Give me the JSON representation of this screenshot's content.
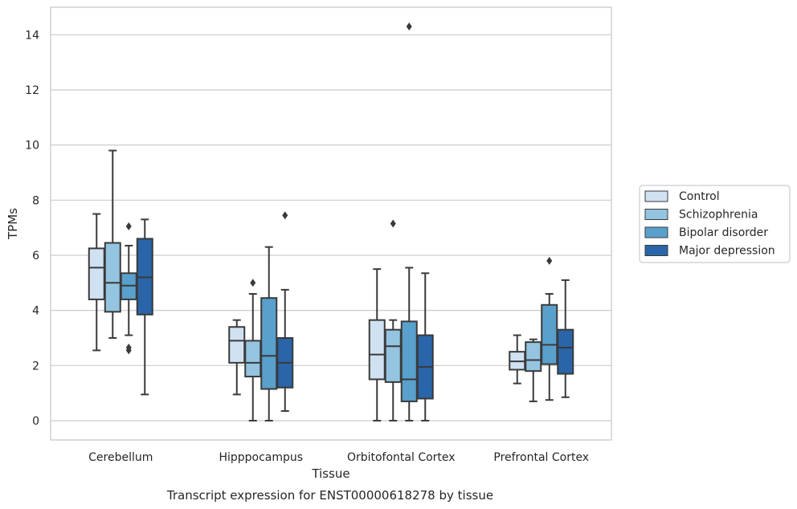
{
  "caption": "Transcript expression for ENST00000618278 by tissue",
  "chart_data": {
    "type": "boxplot",
    "xlabel": "Tissue",
    "ylabel": "TPMs",
    "ylim": [
      -0.7,
      15.0
    ],
    "yticks": [
      0,
      2,
      4,
      6,
      8,
      10,
      12,
      14
    ],
    "grid": "horizontal",
    "legend_position": "right",
    "categories": [
      "Cerebellum",
      "Hipppocampus",
      "Orbitofontal Cortex",
      "Prefrontal Cortex"
    ],
    "series": [
      {
        "name": "Control",
        "color": "#d0e1f2",
        "boxes": [
          {
            "whislo": 2.55,
            "q1": 4.4,
            "med": 5.55,
            "q3": 6.25,
            "whishi": 7.5,
            "fliers": []
          },
          {
            "whislo": 0.95,
            "q1": 2.1,
            "med": 2.9,
            "q3": 3.4,
            "whishi": 3.65,
            "fliers": []
          },
          {
            "whislo": 0.0,
            "q1": 1.5,
            "med": 2.4,
            "q3": 3.65,
            "whishi": 5.5,
            "fliers": []
          },
          {
            "whislo": 1.35,
            "q1": 1.85,
            "med": 2.15,
            "q3": 2.5,
            "whishi": 3.1,
            "fliers": []
          }
        ]
      },
      {
        "name": "Schizophrenia",
        "color": "#94c4df",
        "boxes": [
          {
            "whislo": 3.0,
            "q1": 3.95,
            "med": 5.0,
            "q3": 6.45,
            "whishi": 9.8,
            "fliers": []
          },
          {
            "whislo": 0.0,
            "q1": 1.6,
            "med": 2.1,
            "q3": 2.9,
            "whishi": 4.6,
            "fliers": [
              5.0
            ]
          },
          {
            "whislo": 0.0,
            "q1": 1.4,
            "med": 2.7,
            "q3": 3.3,
            "whishi": 3.65,
            "fliers": [
              7.15
            ]
          },
          {
            "whislo": 0.7,
            "q1": 1.8,
            "med": 2.2,
            "q3": 2.85,
            "whishi": 2.95,
            "fliers": []
          }
        ]
      },
      {
        "name": "Bipolar disorder",
        "color": "#5aa0cc",
        "boxes": [
          {
            "whislo": 3.1,
            "q1": 4.4,
            "med": 4.9,
            "q3": 5.35,
            "whishi": 6.35,
            "fliers": [
              7.05,
              2.55,
              2.65
            ]
          },
          {
            "whislo": 0.0,
            "q1": 1.15,
            "med": 2.35,
            "q3": 4.45,
            "whishi": 6.3,
            "fliers": []
          },
          {
            "whislo": 0.0,
            "q1": 0.7,
            "med": 1.5,
            "q3": 3.6,
            "whishi": 5.55,
            "fliers": [
              14.3
            ]
          },
          {
            "whislo": 0.75,
            "q1": 2.05,
            "med": 2.75,
            "q3": 4.2,
            "whishi": 4.6,
            "fliers": [
              5.8
            ]
          }
        ]
      },
      {
        "name": "Major depression",
        "color": "#2965a8",
        "boxes": [
          {
            "whislo": 0.95,
            "q1": 3.85,
            "med": 5.2,
            "q3": 6.6,
            "whishi": 7.3,
            "fliers": []
          },
          {
            "whislo": 0.35,
            "q1": 1.2,
            "med": 2.1,
            "q3": 3.0,
            "whishi": 4.75,
            "fliers": [
              7.45
            ]
          },
          {
            "whislo": 0.0,
            "q1": 0.8,
            "med": 1.95,
            "q3": 3.1,
            "whishi": 5.35,
            "fliers": []
          },
          {
            "whislo": 0.85,
            "q1": 1.7,
            "med": 2.65,
            "q3": 3.3,
            "whishi": 5.1,
            "fliers": []
          }
        ]
      }
    ]
  }
}
